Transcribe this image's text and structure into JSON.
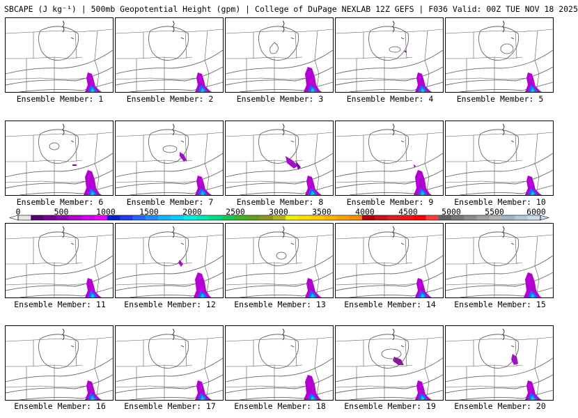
{
  "header": {
    "title": "SBCAPE (J kg⁻¹) | 500mb Geopotential Height (gpm) | College of DuPage NEXLAB 12Z GEFS | F036 Valid: 00Z TUE NOV 18 2025"
  },
  "panels": [
    {
      "label": "Ensemble Member: 1"
    },
    {
      "label": "Ensemble Member: 2"
    },
    {
      "label": "Ensemble Member: 3"
    },
    {
      "label": "Ensemble Member: 4"
    },
    {
      "label": "Ensemble Member: 5"
    },
    {
      "label": "Ensemble Member: 6"
    },
    {
      "label": "Ensemble Member: 7"
    },
    {
      "label": "Ensemble Member: 8"
    },
    {
      "label": "Ensemble Member: 9"
    },
    {
      "label": "Ensemble Member: 10"
    },
    {
      "label": "Ensemble Member: 11"
    },
    {
      "label": "Ensemble Member: 12"
    },
    {
      "label": "Ensemble Member: 13"
    },
    {
      "label": "Ensemble Member: 14"
    },
    {
      "label": "Ensemble Member: 15"
    },
    {
      "label": "Ensemble Member: 16"
    },
    {
      "label": "Ensemble Member: 17"
    },
    {
      "label": "Ensemble Member: 18"
    },
    {
      "label": "Ensemble Member: 19"
    },
    {
      "label": "Ensemble Member: 20"
    }
  ],
  "colorbar": {
    "ticks": [
      "0",
      "500",
      "1000",
      "1500",
      "2000",
      "2500",
      "3000",
      "3500",
      "4000",
      "4500",
      "5000",
      "5500",
      "6000"
    ],
    "colors": [
      "#e6e6e6",
      "#5a0078",
      "#780096",
      "#9600b4",
      "#b400d2",
      "#d200f0",
      "#f000ff",
      "#0a1ed2",
      "#1e3cf0",
      "#2864ff",
      "#1e8cff",
      "#14b4ff",
      "#00d2ff",
      "#00f0e6",
      "#00e6b4",
      "#00dc82",
      "#14c850",
      "#3cb41e",
      "#64a014",
      "#8c961e",
      "#b4b414",
      "#f0f000",
      "#ffdc00",
      "#ffc800",
      "#ffb400",
      "#ffa000",
      "#ff8c00",
      "#b40000",
      "#c81414",
      "#dc1e1e",
      "#f01414",
      "#ff0000",
      "#ff3c3c",
      "#646464",
      "#787878",
      "#8c8c8c",
      "#a0a0a0",
      "#b4b4b4",
      "#a0b4c8",
      "#b4c8dc",
      "#c8dcf0"
    ]
  }
}
